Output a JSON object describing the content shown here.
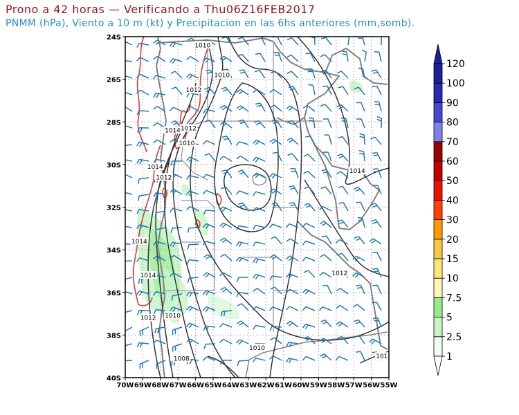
{
  "title": {
    "line1": "Prono a 42 horas — Verificando a Thu06Z16FEB2017",
    "line2": "PNMM (hPa), Viento a 10 m (kt) y Precipitacion en las 6hs anteriores (mm,somb)."
  },
  "map": {
    "lat_labels": [
      "24S",
      "26S",
      "28S",
      "30S",
      "32S",
      "34S",
      "36S",
      "38S",
      "40S"
    ],
    "lon_labels": [
      "70W",
      "69W",
      "68W",
      "67W",
      "66W",
      "65W",
      "64W",
      "63W",
      "62W",
      "61W",
      "60W",
      "59W",
      "58W",
      "57W",
      "56W",
      "55W"
    ],
    "isobar_labels": [
      {
        "text": "1010",
        "lon": -64.5,
        "lat": -25.8
      },
      {
        "text": "1012",
        "lon": -66.1,
        "lat": -26.5
      },
      {
        "text": "1010",
        "lon": -65.6,
        "lat": -24.4
      },
      {
        "text": "1014",
        "lon": -67.3,
        "lat": -28.4
      },
      {
        "text": "1012",
        "lon": -66.4,
        "lat": -28.3
      },
      {
        "text": "1010",
        "lon": -66.5,
        "lat": -29.0
      },
      {
        "text": "1014",
        "lon": -68.3,
        "lat": -30.1
      },
      {
        "text": "1012",
        "lon": -67.8,
        "lat": -30.6
      },
      {
        "text": "1014",
        "lon": -56.8,
        "lat": -30.3
      },
      {
        "text": "1014",
        "lon": -69.2,
        "lat": -33.6
      },
      {
        "text": "1014",
        "lon": -68.7,
        "lat": -35.2
      },
      {
        "text": "1012",
        "lon": -57.8,
        "lat": -35.1
      },
      {
        "text": "1012",
        "lon": -68.7,
        "lat": -37.2
      },
      {
        "text": "1010",
        "lon": -67.3,
        "lat": -37.1
      },
      {
        "text": "1010",
        "lon": -62.5,
        "lat": -38.6
      },
      {
        "text": "1008",
        "lon": -66.8,
        "lat": -39.1
      },
      {
        "text": "101",
        "lon": -55.4,
        "lat": -39.0
      }
    ]
  },
  "colorbar": {
    "levels": [
      "1",
      "2.5",
      "5",
      "7.5",
      "10",
      "15",
      "20",
      "30",
      "40",
      "50",
      "60",
      "70",
      "80",
      "90",
      "100",
      "120"
    ],
    "colors": [
      "#f0fcf0",
      "#c8f5c8",
      "#96eb8c",
      "#fff5b4",
      "#ffe678",
      "#f5c840",
      "#ff9a00",
      "#ff4000",
      "#eb1400",
      "#c30000",
      "#9b0000",
      "#8080eb",
      "#4646d2",
      "#2828b4",
      "#1e1e96"
    ],
    "end_color": "#1e1e96"
  },
  "colors": {
    "isobar": "#333333",
    "wind_barb": "#1a7abf",
    "terrain_contour": "#e03a3a",
    "country_border": "#808080",
    "province_border": "#999999",
    "grid": "#a0a0a0"
  }
}
